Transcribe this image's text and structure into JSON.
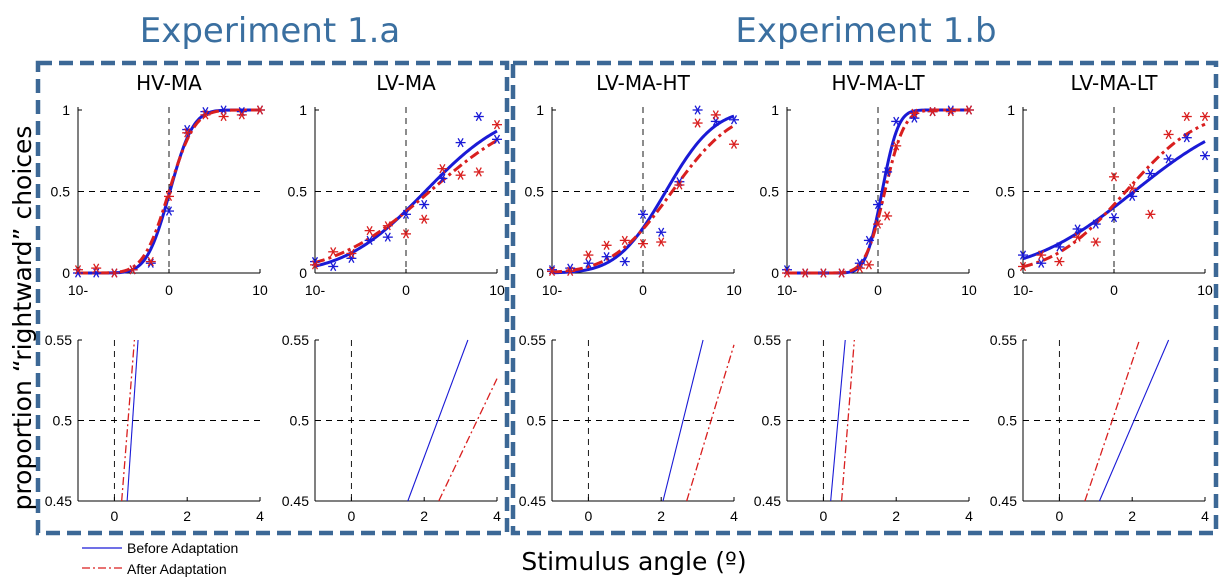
{
  "colors": {
    "title": "#3a6fa0",
    "frame": "#3c6896",
    "before": "#1a1ad6",
    "after": "#d91f1f",
    "guide": "#000000"
  },
  "experiments": [
    {
      "title": "Experiment 1.a"
    },
    {
      "title": "Experiment 1.b"
    }
  ],
  "ylabel": "proportion “rightward” choices",
  "xlabel": "Stimulus angle (º)",
  "legend": [
    {
      "label": "Before Adaptation",
      "style": "solid",
      "color": "#1a1ad6"
    },
    {
      "label": "After Adaptation",
      "style": "dashdot",
      "color": "#d91f1f"
    }
  ],
  "chart_data": [
    {
      "panel": "HV-MA",
      "experiment": "Experiment 1.a",
      "type": "scatter+line",
      "title": "HV-MA",
      "top": {
        "xlim": [
          -10,
          10
        ],
        "ylim": [
          0,
          1
        ],
        "xtick_labels": [
          "10-",
          "0",
          "10"
        ],
        "ytick_labels": [
          "0",
          "0.5",
          "1"
        ],
        "before_curve": {
          "mu": 0.1,
          "sigma": 2.0
        },
        "after_curve": {
          "mu": 0.0,
          "sigma": 2.2
        },
        "before_points": {
          "x": [
            -10,
            -8,
            -6,
            -4,
            -2,
            0,
            2,
            4,
            6,
            8,
            10
          ],
          "y": [
            0.0,
            0.0,
            0.0,
            0.02,
            0.06,
            0.38,
            0.88,
            0.99,
            1.0,
            0.99,
            1.0
          ]
        },
        "after_points": {
          "x": [
            -10,
            -8,
            -6,
            -4,
            -2,
            0,
            2,
            4,
            6,
            8,
            10
          ],
          "y": [
            0.02,
            0.03,
            0.0,
            0.02,
            0.07,
            0.47,
            0.86,
            0.97,
            0.96,
            0.97,
            1.0
          ]
        }
      },
      "bottom": {
        "xlim": [
          -1,
          4
        ],
        "ylim": [
          0.45,
          0.55
        ],
        "xtick_labels": [
          "0",
          "2",
          "4"
        ],
        "ytick_labels": [
          "0.45",
          "0.5",
          "0.55"
        ],
        "before_line": {
          "x": [
            0.35,
            0.65
          ],
          "y": [
            0.45,
            0.55
          ]
        },
        "after_line": {
          "x": [
            0.2,
            0.55
          ],
          "y": [
            0.45,
            0.55
          ]
        }
      }
    },
    {
      "panel": "LV-MA",
      "experiment": "Experiment 1.a",
      "type": "scatter+line",
      "title": "LV-MA",
      "top": {
        "xlim": [
          -10,
          10
        ],
        "ylim": [
          0,
          1
        ],
        "xtick_labels": [
          "10-",
          "0",
          "10"
        ],
        "ytick_labels": [
          "0",
          "0.5",
          "1"
        ],
        "before_curve": {
          "mu": 2.1,
          "sigma": 7.0
        },
        "after_curve": {
          "mu": 2.6,
          "sigma": 8.3
        },
        "before_points": {
          "x": [
            -10,
            -8,
            -6,
            -4,
            -2,
            0,
            2,
            4,
            6,
            8,
            10
          ],
          "y": [
            0.07,
            0.04,
            0.09,
            0.2,
            0.22,
            0.36,
            0.42,
            0.58,
            0.8,
            0.96,
            0.82
          ]
        },
        "after_points": {
          "x": [
            -10,
            -8,
            -6,
            -4,
            -2,
            0,
            2,
            4,
            6,
            8,
            10
          ],
          "y": [
            0.05,
            0.13,
            0.12,
            0.26,
            0.29,
            0.24,
            0.33,
            0.64,
            0.6,
            0.62,
            0.91
          ]
        }
      },
      "bottom": {
        "xlim": [
          -1,
          4
        ],
        "ylim": [
          0.45,
          0.55
        ],
        "xtick_labels": [
          "0",
          "2",
          "4"
        ],
        "ytick_labels": [
          "0.45",
          "0.5",
          "0.55"
        ],
        "before_line": {
          "x": [
            1.55,
            3.2
          ],
          "y": [
            0.45,
            0.55
          ]
        },
        "after_line": {
          "x": [
            2.4,
            4.0
          ],
          "y": [
            0.45,
            0.526
          ]
        }
      }
    },
    {
      "panel": "LV-MA-HT",
      "experiment": "Experiment 1.b",
      "type": "scatter+line",
      "title": "LV-MA-HT",
      "top": {
        "xlim": [
          -10,
          10
        ],
        "ylim": [
          0,
          1
        ],
        "xtick_labels": [
          "10-",
          "0",
          "10"
        ],
        "ytick_labels": [
          "0",
          "0.5",
          "1"
        ],
        "before_curve": {
          "mu": 2.5,
          "sigma": 4.2
        },
        "after_curve": {
          "mu": 3.2,
          "sigma": 5.2
        },
        "before_points": {
          "x": [
            -10,
            -8,
            -6,
            -4,
            -2,
            0,
            2,
            4,
            6,
            8,
            10
          ],
          "y": [
            0.02,
            0.03,
            0.06,
            0.1,
            0.07,
            0.36,
            0.25,
            0.56,
            1.0,
            0.93,
            0.94
          ]
        },
        "after_points": {
          "x": [
            -10,
            -8,
            -6,
            -4,
            -2,
            0,
            2,
            4,
            6,
            8,
            10
          ],
          "y": [
            0.01,
            0.01,
            0.11,
            0.17,
            0.2,
            0.18,
            0.19,
            0.54,
            0.92,
            0.97,
            0.79
          ]
        }
      },
      "bottom": {
        "xlim": [
          -1,
          4
        ],
        "ylim": [
          0.45,
          0.55
        ],
        "xtick_labels": [
          "0",
          "2",
          "4"
        ],
        "ytick_labels": [
          "0.45",
          "0.5",
          "0.55"
        ],
        "before_line": {
          "x": [
            2.05,
            3.15
          ],
          "y": [
            0.45,
            0.55
          ]
        },
        "after_line": {
          "x": [
            2.7,
            4.0
          ],
          "y": [
            0.45,
            0.547
          ]
        }
      }
    },
    {
      "panel": "HV-MA-LT",
      "experiment": "Experiment 1.b",
      "type": "scatter+line",
      "title": "HV-MA-LT",
      "top": {
        "xlim": [
          -10,
          10
        ],
        "ylim": [
          0,
          1
        ],
        "xtick_labels": [
          "10-",
          "0",
          "10"
        ],
        "ytick_labels": [
          "0",
          "0.5",
          "1"
        ],
        "before_curve": {
          "mu": 0.45,
          "sigma": 1.4
        },
        "after_curve": {
          "mu": 0.75,
          "sigma": 1.7
        },
        "before_points": {
          "x": [
            -10,
            -8,
            -6,
            -4,
            -2,
            -1,
            0,
            1,
            2,
            4,
            6,
            8,
            10
          ],
          "y": [
            0.02,
            0.0,
            0.0,
            0.0,
            0.06,
            0.2,
            0.42,
            0.62,
            0.93,
            0.95,
            0.99,
            1.0,
            1.0
          ]
        },
        "after_points": {
          "x": [
            -10,
            -8,
            -6,
            -4,
            -2,
            -1,
            0,
            1,
            2,
            4,
            6,
            8,
            10
          ],
          "y": [
            0.0,
            0.0,
            0.0,
            0.0,
            0.03,
            0.05,
            0.3,
            0.35,
            0.78,
            0.98,
            0.99,
            0.99,
            1.0
          ]
        }
      },
      "bottom": {
        "xlim": [
          -1,
          4
        ],
        "ylim": [
          0.45,
          0.55
        ],
        "xtick_labels": [
          "0",
          "2",
          "4"
        ],
        "ytick_labels": [
          "0.45",
          "0.5",
          "0.55"
        ],
        "before_line": {
          "x": [
            0.2,
            0.6
          ],
          "y": [
            0.45,
            0.55
          ]
        },
        "after_line": {
          "x": [
            0.5,
            0.85
          ],
          "y": [
            0.45,
            0.55
          ]
        }
      }
    },
    {
      "panel": "LV-MA-LT",
      "experiment": "Experiment 1.b",
      "type": "scatter+line",
      "title": "LV-MA-LT",
      "top": {
        "xlim": [
          -10,
          10
        ],
        "ylim": [
          0,
          1
        ],
        "xtick_labels": [
          "10-",
          "0",
          "10"
        ],
        "ytick_labels": [
          "0",
          "0.5",
          "1"
        ],
        "before_curve": {
          "mu": 2.2,
          "sigma": 9.0
        },
        "after_curve": {
          "mu": 1.3,
          "sigma": 6.4
        },
        "before_points": {
          "x": [
            -10,
            -8,
            -6,
            -4,
            -2,
            0,
            2,
            4,
            6,
            8,
            10
          ],
          "y": [
            0.11,
            0.06,
            0.16,
            0.27,
            0.3,
            0.34,
            0.47,
            0.61,
            0.7,
            0.83,
            0.72
          ]
        },
        "after_points": {
          "x": [
            -10,
            -8,
            -6,
            -4,
            -2,
            0,
            2,
            4,
            6,
            8,
            10
          ],
          "y": [
            0.04,
            0.11,
            0.07,
            0.22,
            0.19,
            0.59,
            0.52,
            0.36,
            0.85,
            0.96,
            0.96
          ]
        }
      },
      "bottom": {
        "xlim": [
          -1,
          4
        ],
        "ylim": [
          0.45,
          0.55
        ],
        "xtick_labels": [
          "0",
          "2",
          "4"
        ],
        "ytick_labels": [
          "0.45",
          "0.5",
          "0.55"
        ],
        "before_line": {
          "x": [
            1.1,
            3.0
          ],
          "y": [
            0.45,
            0.55
          ]
        },
        "after_line": {
          "x": [
            0.7,
            2.2
          ],
          "y": [
            0.45,
            0.55
          ]
        }
      }
    }
  ]
}
